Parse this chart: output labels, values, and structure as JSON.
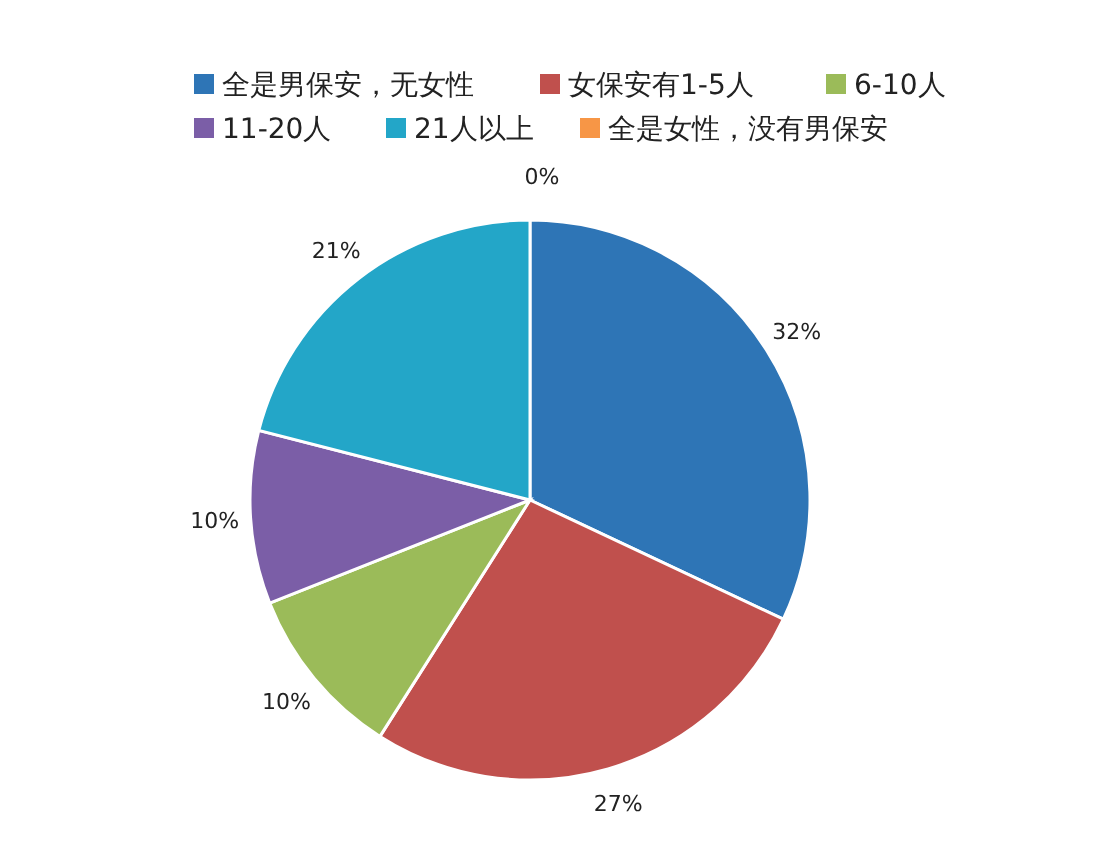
{
  "chart_data": {
    "type": "pie",
    "categories": [
      "全是男保安，无女性",
      "女保安有1-5人",
      "6-10人",
      "11-20人",
      "21人以上",
      "全是女性，没有男保安"
    ],
    "values": [
      32,
      27,
      10,
      10,
      21,
      0
    ],
    "colors": [
      "#2e75b6",
      "#c0504d",
      "#9bbb59",
      "#7b5ea7",
      "#23a6c8",
      "#f79646"
    ],
    "value_labels": [
      "32%",
      "27%",
      "10%",
      "10%",
      "21%",
      "0%"
    ],
    "legend": "top"
  }
}
